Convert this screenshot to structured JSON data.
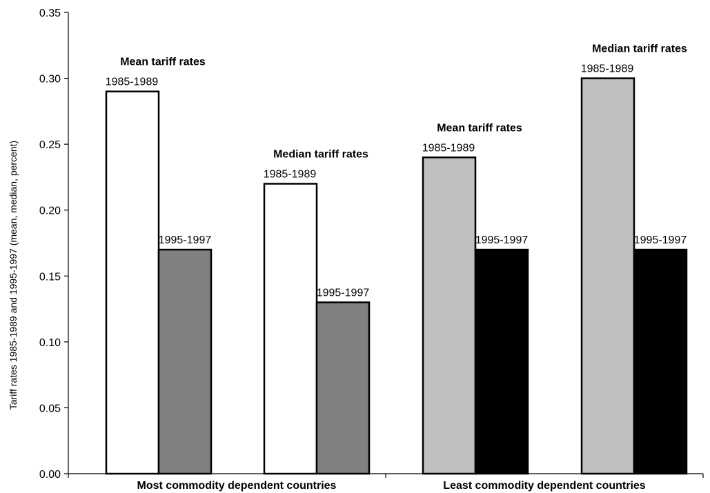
{
  "chart_data": {
    "type": "bar",
    "ylabel": "Tariff rates 1985-1989 and 1995-1997 (mean, median, percent)",
    "ylim": [
      0,
      0.35
    ],
    "yticks": [
      "0.00",
      "0.05",
      "0.10",
      "0.15",
      "0.20",
      "0.25",
      "0.30",
      "0.35"
    ],
    "categories": [
      "Most commodity dependent countries",
      "Least commodity dependent countries"
    ],
    "grid": false,
    "legend": "none",
    "groups": [
      {
        "category": "Most commodity dependent countries",
        "title": "Mean tariff rates",
        "bars": [
          {
            "label": "1985-1989",
            "value": 0.29,
            "color": "#ffffff"
          },
          {
            "label": "1995-1997",
            "value": 0.17,
            "color": "#808080"
          }
        ]
      },
      {
        "category": "Most commodity dependent countries",
        "title": "Median tariff rates",
        "bars": [
          {
            "label": "1985-1989",
            "value": 0.22,
            "color": "#ffffff"
          },
          {
            "label": "1995-1997",
            "value": 0.13,
            "color": "#808080"
          }
        ]
      },
      {
        "category": "Least commodity dependent countries",
        "title": "Mean tariff rates",
        "bars": [
          {
            "label": "1985-1989",
            "value": 0.24,
            "color": "#c0c0c0"
          },
          {
            "label": "1995-1997",
            "value": 0.17,
            "color": "#000000"
          }
        ]
      },
      {
        "category": "Least commodity dependent countries",
        "title": "Median tariff rates",
        "bars": [
          {
            "label": "1985-1989",
            "value": 0.3,
            "color": "#c0c0c0"
          },
          {
            "label": "1995-1997",
            "value": 0.17,
            "color": "#000000"
          }
        ]
      }
    ]
  }
}
